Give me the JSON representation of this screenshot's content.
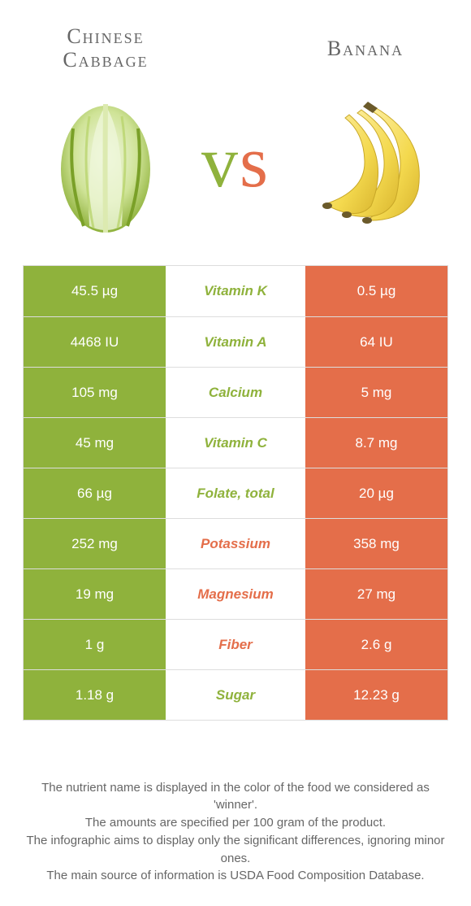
{
  "colors": {
    "green": "#8fb23c",
    "orange": "#e46e4a",
    "text": "#555",
    "border": "#ddd",
    "bg": "#ffffff"
  },
  "foodA": {
    "name": "Chinese Cabbage",
    "color": "#8fb23c"
  },
  "foodB": {
    "name": "Banana",
    "color": "#e46e4a"
  },
  "vs": "vs",
  "rows": [
    {
      "a": "45.5 µg",
      "label": "Vitamin K",
      "b": "0.5 µg",
      "winner": "a"
    },
    {
      "a": "4468 IU",
      "label": "Vitamin A",
      "b": "64 IU",
      "winner": "a"
    },
    {
      "a": "105 mg",
      "label": "Calcium",
      "b": "5 mg",
      "winner": "a"
    },
    {
      "a": "45 mg",
      "label": "Vitamin C",
      "b": "8.7 mg",
      "winner": "a"
    },
    {
      "a": "66 µg",
      "label": "Folate, total",
      "b": "20 µg",
      "winner": "a"
    },
    {
      "a": "252 mg",
      "label": "Potassium",
      "b": "358 mg",
      "winner": "b"
    },
    {
      "a": "19 mg",
      "label": "Magnesium",
      "b": "27 mg",
      "winner": "b"
    },
    {
      "a": "1 g",
      "label": "Fiber",
      "b": "2.6 g",
      "winner": "b"
    },
    {
      "a": "1.18 g",
      "label": "Sugar",
      "b": "12.23 g",
      "winner": "a"
    }
  ],
  "footer": [
    "The nutrient name is displayed in the color of the food we considered as 'winner'.",
    "The amounts are specified per 100 gram of the product.",
    "The infographic aims to display only the significant differences, ignoring minor ones.",
    "The main source of information is USDA Food Composition Database."
  ]
}
